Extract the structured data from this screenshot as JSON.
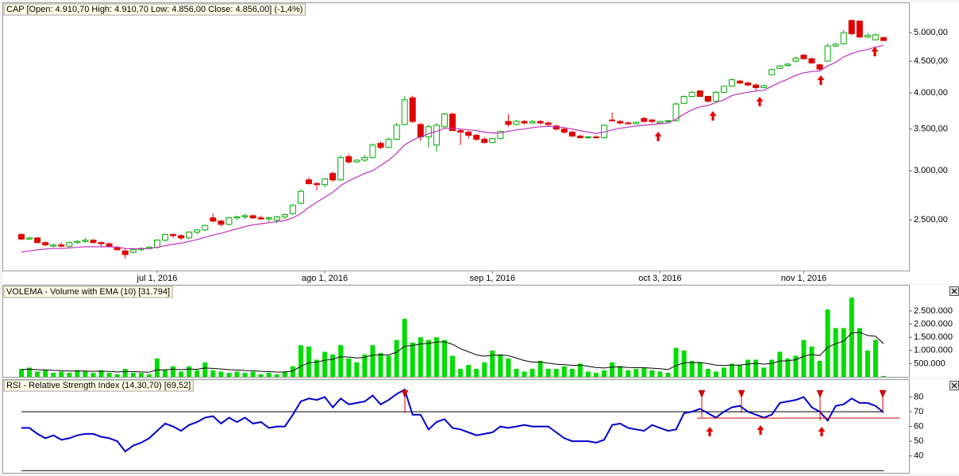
{
  "chart_data": [
    {
      "type": "candlestick",
      "title": "CAP [Open: 4.910,70  High: 4.910,70  Low: 4.856,00  Close: 4.856,00] (-1,4%)",
      "categories": [
        null,
        null,
        null,
        null,
        null,
        null,
        null,
        null,
        null,
        null,
        null,
        null,
        null,
        null,
        null,
        null,
        null,
        "jul 1, 2016",
        null,
        null,
        null,
        null,
        null,
        null,
        null,
        null,
        null,
        null,
        null,
        null,
        null,
        null,
        null,
        null,
        null,
        null,
        null,
        null,
        "ago 1, 2016",
        null,
        null,
        null,
        null,
        null,
        null,
        null,
        null,
        null,
        null,
        null,
        null,
        null,
        null,
        null,
        null,
        null,
        null,
        null,
        null,
        "sep 1, 2016",
        null,
        null,
        null,
        null,
        null,
        null,
        null,
        null,
        null,
        null,
        null,
        null,
        null,
        null,
        null,
        null,
        null,
        null,
        null,
        null,
        "oct 3, 2016",
        null,
        null,
        null,
        null,
        null,
        null,
        null,
        null,
        null,
        null,
        null,
        null,
        null,
        null,
        null,
        null,
        null,
        "nov 1, 2016",
        null,
        null,
        null,
        null,
        null,
        null,
        null,
        null,
        null,
        null
      ],
      "open": [
        2370,
        2330,
        2340,
        2300,
        2270,
        2280,
        2270,
        2300,
        2310,
        2320,
        2300,
        2290,
        2260,
        2230,
        2220,
        2240,
        2250,
        2260,
        2320,
        2370,
        2360,
        2340,
        2390,
        2410,
        2520,
        2490,
        2460,
        2520,
        2530,
        2540,
        2520,
        2510,
        2500,
        2530,
        2560,
        2660,
        2900,
        2860,
        2850,
        2970,
        2900,
        3160,
        3100,
        3120,
        3150,
        3320,
        3270,
        3370,
        3560,
        3930,
        3560,
        3400,
        3300,
        3530,
        3700,
        3480,
        3460,
        3420,
        3370,
        3330,
        3380,
        3600,
        3560,
        3600,
        3580,
        3600,
        3580,
        3540,
        3500,
        3460,
        3410,
        3390,
        3400,
        3390,
        3620,
        3600,
        3580,
        3570,
        3640,
        3620,
        3580,
        3600,
        3610,
        3850,
        3950,
        4030,
        3950,
        3880,
        4010,
        4100,
        4180,
        4150,
        4120,
        4080,
        4280,
        4380,
        4430,
        4500,
        4600,
        4540,
        4440,
        4500,
        4760,
        4800,
        5230,
        5220,
        4920,
        4870,
        4910.7
      ],
      "high": [
        2380,
        2350,
        2345,
        2310,
        2290,
        2300,
        2310,
        2320,
        2340,
        2330,
        2310,
        2300,
        2270,
        2250,
        2250,
        2260,
        2270,
        2330,
        2380,
        2380,
        2370,
        2400,
        2420,
        2460,
        2560,
        2500,
        2530,
        2540,
        2560,
        2550,
        2540,
        2530,
        2540,
        2560,
        2650,
        2800,
        2930,
        2880,
        2920,
        2990,
        3180,
        3190,
        3130,
        3180,
        3320,
        3340,
        3390,
        3580,
        3950,
        3960,
        3580,
        3560,
        3580,
        3720,
        3720,
        3500,
        3480,
        3440,
        3400,
        3390,
        3480,
        3700,
        3620,
        3620,
        3620,
        3620,
        3600,
        3560,
        3520,
        3480,
        3430,
        3410,
        3420,
        3560,
        3720,
        3620,
        3600,
        3600,
        3660,
        3630,
        3610,
        3620,
        3860,
        3960,
        4030,
        4040,
        3960,
        4030,
        4110,
        4220,
        4200,
        4170,
        4140,
        4130,
        4380,
        4440,
        4470,
        4580,
        4620,
        4560,
        4460,
        4800,
        4820,
        5050,
        5250,
        5230,
        5000,
        4990,
        4910.7
      ],
      "low": [
        2320,
        2320,
        2290,
        2270,
        2260,
        2260,
        2260,
        2290,
        2300,
        2290,
        2270,
        2260,
        2230,
        2170,
        2210,
        2230,
        2240,
        2250,
        2310,
        2340,
        2320,
        2330,
        2370,
        2400,
        2480,
        2440,
        2450,
        2500,
        2510,
        2510,
        2500,
        2480,
        2470,
        2510,
        2550,
        2650,
        2850,
        2790,
        2820,
        2880,
        2890,
        3080,
        3090,
        3100,
        3140,
        3250,
        3260,
        3360,
        3550,
        3580,
        3350,
        3270,
        3220,
        3510,
        3480,
        3300,
        3380,
        3350,
        3320,
        3320,
        3370,
        3530,
        3550,
        3560,
        3570,
        3560,
        3540,
        3480,
        3440,
        3400,
        3380,
        3380,
        3380,
        3380,
        3600,
        3560,
        3560,
        3560,
        3590,
        3580,
        3570,
        3590,
        3600,
        3840,
        3940,
        3940,
        3860,
        3870,
        4000,
        4090,
        4130,
        4100,
        4030,
        4070,
        4270,
        4370,
        4410,
        4480,
        4530,
        4460,
        4350,
        4490,
        4740,
        4780,
        4950,
        4900,
        4900,
        4860,
        4856
      ],
      "close": [
        2330,
        2340,
        2300,
        2280,
        2280,
        2270,
        2300,
        2310,
        2320,
        2300,
        2290,
        2270,
        2240,
        2200,
        2240,
        2250,
        2260,
        2320,
        2370,
        2360,
        2340,
        2390,
        2410,
        2450,
        2490,
        2460,
        2520,
        2530,
        2540,
        2520,
        2510,
        2520,
        2530,
        2550,
        2640,
        2780,
        2860,
        2850,
        2910,
        2900,
        3150,
        3100,
        3120,
        3150,
        3300,
        3270,
        3370,
        3550,
        3900,
        3600,
        3400,
        3530,
        3550,
        3700,
        3480,
        3460,
        3420,
        3370,
        3330,
        3380,
        3470,
        3560,
        3600,
        3580,
        3600,
        3580,
        3560,
        3500,
        3460,
        3410,
        3390,
        3400,
        3390,
        3550,
        3610,
        3580,
        3570,
        3590,
        3600,
        3600,
        3600,
        3610,
        3840,
        3950,
        4010,
        3950,
        3880,
        4010,
        4100,
        4200,
        4150,
        4120,
        4080,
        4110,
        4360,
        4420,
        4450,
        4550,
        4540,
        4470,
        4370,
        4760,
        4790,
        5000,
        4980,
        4920,
        4950,
        4960,
        4856
      ],
      "up_color": "#00aa00",
      "down_color": "#e00000",
      "ema_values": [
        2220,
        2230,
        2240,
        2245,
        2250,
        2250,
        2255,
        2260,
        2265,
        2265,
        2265,
        2265,
        2260,
        2250,
        2248,
        2248,
        2250,
        2260,
        2275,
        2285,
        2295,
        2310,
        2325,
        2345,
        2365,
        2380,
        2400,
        2420,
        2440,
        2455,
        2465,
        2475,
        2485,
        2495,
        2520,
        2560,
        2620,
        2670,
        2720,
        2770,
        2840,
        2890,
        2930,
        2970,
        3000,
        3060,
        3120,
        3200,
        3300,
        3360,
        3400,
        3440,
        3470,
        3510,
        3510,
        3500,
        3490,
        3480,
        3460,
        3450,
        3450,
        3470,
        3490,
        3500,
        3520,
        3530,
        3535,
        3530,
        3520,
        3500,
        3480,
        3460,
        3445,
        3460,
        3490,
        3510,
        3525,
        3540,
        3550,
        3560,
        3570,
        3580,
        3630,
        3700,
        3760,
        3800,
        3820,
        3860,
        3900,
        3960,
        3990,
        4010,
        4030,
        4040,
        4100,
        4160,
        4210,
        4270,
        4310,
        4330,
        4340,
        4420,
        4480,
        4570,
        4630,
        4670,
        4700,
        4740,
        4770
      ],
      "ema_color": "#c030c0",
      "log": true,
      "ylim": [
        2080,
        5560
      ],
      "yticks": [
        {
          "value": 2500,
          "label": "2.500,00"
        },
        {
          "value": 3000,
          "label": "3.000,00"
        },
        {
          "value": 3500,
          "label": "3.500,00"
        },
        {
          "value": 4000,
          "label": "4.000,00"
        },
        {
          "value": 4500,
          "label": "4.500,00"
        },
        {
          "value": 5000,
          "label": "5.000,00"
        }
      ]
    },
    {
      "type": "bar",
      "title": "VOLEMA - Volume with EMA (10) [31.794]",
      "values": [
        300000,
        350000,
        200000,
        250000,
        150000,
        200000,
        150000,
        250000,
        200000,
        150000,
        250000,
        150000,
        100000,
        300000,
        150000,
        150000,
        100000,
        700000,
        250000,
        400000,
        200000,
        400000,
        250000,
        550000,
        250000,
        200000,
        150000,
        200000,
        150000,
        200000,
        100000,
        150000,
        100000,
        200000,
        400000,
        1200000,
        1150000,
        650000,
        950000,
        850000,
        1200000,
        700000,
        550000,
        850000,
        1200000,
        900000,
        800000,
        1400000,
        2200000,
        1300000,
        1500000,
        1400000,
        1500000,
        1400000,
        800000,
        300000,
        450000,
        300000,
        550000,
        1000000,
        850000,
        700000,
        300000,
        200000,
        300000,
        600000,
        300000,
        300000,
        400000,
        300000,
        500000,
        200000,
        150000,
        250000,
        550000,
        400000,
        250000,
        300000,
        350000,
        250000,
        200000,
        150000,
        1100000,
        1000000,
        600000,
        550000,
        300000,
        200000,
        350000,
        500000,
        450000,
        650000,
        650000,
        350000,
        650000,
        950000,
        700000,
        800000,
        1400000,
        1150000,
        600000,
        2550000,
        1850000,
        1850000,
        3000000,
        1850000,
        1000000,
        1400000,
        31794
      ],
      "color": "#00dd00",
      "ema_values": [
        280000,
        290000,
        270000,
        265000,
        245000,
        237000,
        221000,
        226000,
        221000,
        208000,
        215000,
        203000,
        184000,
        205000,
        195000,
        187000,
        171000,
        267000,
        264000,
        289000,
        272000,
        295000,
        287000,
        335000,
        320000,
        298000,
        271000,
        258000,
        238000,
        231000,
        207000,
        197000,
        180000,
        184000,
        223000,
        401000,
        537000,
        558000,
        629000,
        669000,
        765000,
        753000,
        716000,
        740000,
        824000,
        838000,
        831000,
        934000,
        1165000,
        1189000,
        1246000,
        1274000,
        1315000,
        1330000,
        1234000,
        1064000,
        952000,
        834000,
        782000,
        821000,
        826000,
        803000,
        711000,
        618000,
        560000,
        567000,
        519000,
        479000,
        464000,
        434000,
        446000,
        401000,
        355000,
        335000,
        374000,
        379000,
        356000,
        346000,
        347000,
        329000,
        306000,
        278000,
        427000,
        531000,
        543000,
        544000,
        500000,
        446000,
        428000,
        441000,
        443000,
        480000,
        511000,
        482000,
        512000,
        592000,
        612000,
        646000,
        783000,
        850000,
        804000,
        1122000,
        1254000,
        1361000,
        1659000,
        1694000,
        1568000,
        1537000,
        1258000
      ],
      "ema_color": "#000000",
      "ylim": [
        0,
        3400000
      ],
      "yticks": [
        {
          "value": 500000,
          "label": "500.000"
        },
        {
          "value": 1000000,
          "label": "1.000.000"
        },
        {
          "value": 1500000,
          "label": "1.500.000"
        },
        {
          "value": 2000000,
          "label": "2.000.000"
        },
        {
          "value": 2500000,
          "label": "2.500.000"
        }
      ]
    },
    {
      "type": "line",
      "title": "RSI - Relative Strength Index (14,30,70) [69,52]",
      "values": [
        59,
        59,
        55,
        52,
        54,
        51,
        52,
        54,
        55,
        55,
        53,
        52,
        50,
        43,
        47,
        49,
        52,
        57,
        62,
        60,
        57,
        61,
        63,
        66,
        67,
        62,
        66,
        63,
        66,
        62,
        63,
        59,
        60,
        60,
        68,
        77,
        79,
        78,
        80,
        73,
        79,
        75,
        76,
        77,
        81,
        75,
        78,
        82,
        85,
        68,
        68,
        58,
        63,
        65,
        59,
        58,
        56,
        54,
        55,
        56,
        60,
        59,
        60,
        61,
        60,
        60,
        60,
        56,
        52,
        50,
        50,
        50,
        49,
        51,
        61,
        62,
        59,
        58,
        57,
        61,
        59,
        57,
        58,
        69,
        70,
        72,
        69,
        66,
        70,
        73,
        74,
        70,
        68,
        66,
        68,
        76,
        77,
        78,
        80,
        73,
        70,
        64,
        74,
        75,
        79,
        76,
        76,
        74,
        69.52
      ],
      "color": "#0000cc",
      "levels": [
        30,
        70
      ],
      "ylim": [
        28,
        91
      ],
      "yticks": [
        40,
        50,
        60,
        70,
        80
      ]
    }
  ]
}
